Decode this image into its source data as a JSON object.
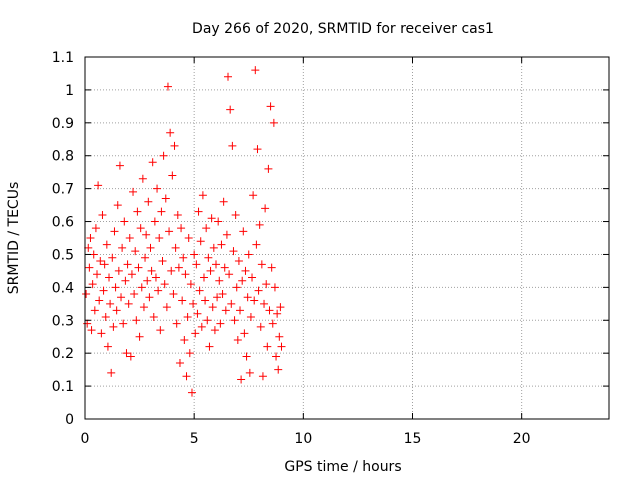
{
  "chart_data": {
    "type": "scatter",
    "title": "Day 266 of 2020, SRMTID for receiver cas1",
    "xlabel": "GPS time / hours",
    "ylabel": "SRMTID / TECUs",
    "xlim": [
      0,
      24
    ],
    "ylim": [
      0,
      1.1
    ],
    "xticks": [
      0,
      5,
      10,
      15,
      20
    ],
    "yticks": [
      0,
      0.1,
      0.2,
      0.3,
      0.4,
      0.5,
      0.6,
      0.7,
      0.8,
      0.9,
      1,
      1.1
    ],
    "grid": true,
    "legend": "none",
    "series_color": "#ff0000",
    "series": [
      {
        "name": "SRMTID",
        "marker": "plus",
        "points": [
          [
            0.05,
            0.38
          ],
          [
            0.1,
            0.29
          ],
          [
            0.15,
            0.52
          ],
          [
            0.2,
            0.46
          ],
          [
            0.25,
            0.55
          ],
          [
            0.3,
            0.27
          ],
          [
            0.35,
            0.41
          ],
          [
            0.4,
            0.5
          ],
          [
            0.45,
            0.33
          ],
          [
            0.5,
            0.58
          ],
          [
            0.55,
            0.44
          ],
          [
            0.6,
            0.71
          ],
          [
            0.65,
            0.36
          ],
          [
            0.7,
            0.48
          ],
          [
            0.75,
            0.26
          ],
          [
            0.8,
            0.62
          ],
          [
            0.85,
            0.39
          ],
          [
            0.9,
            0.47
          ],
          [
            0.95,
            0.31
          ],
          [
            1.0,
            0.53
          ],
          [
            1.05,
            0.22
          ],
          [
            1.1,
            0.43
          ],
          [
            1.15,
            0.35
          ],
          [
            1.2,
            0.14
          ],
          [
            1.25,
            0.49
          ],
          [
            1.3,
            0.28
          ],
          [
            1.35,
            0.57
          ],
          [
            1.4,
            0.4
          ],
          [
            1.45,
            0.33
          ],
          [
            1.5,
            0.65
          ],
          [
            1.55,
            0.45
          ],
          [
            1.6,
            0.77
          ],
          [
            1.65,
            0.37
          ],
          [
            1.7,
            0.52
          ],
          [
            1.75,
            0.29
          ],
          [
            1.8,
            0.6
          ],
          [
            1.85,
            0.42
          ],
          [
            1.9,
            0.2
          ],
          [
            1.95,
            0.47
          ],
          [
            2.0,
            0.35
          ],
          [
            2.05,
            0.55
          ],
          [
            2.1,
            0.19
          ],
          [
            2.15,
            0.44
          ],
          [
            2.2,
            0.69
          ],
          [
            2.25,
            0.38
          ],
          [
            2.3,
            0.51
          ],
          [
            2.35,
            0.3
          ],
          [
            2.4,
            0.63
          ],
          [
            2.45,
            0.46
          ],
          [
            2.5,
            0.25
          ],
          [
            2.55,
            0.58
          ],
          [
            2.6,
            0.4
          ],
          [
            2.65,
            0.73
          ],
          [
            2.7,
            0.34
          ],
          [
            2.75,
            0.49
          ],
          [
            2.8,
            0.56
          ],
          [
            2.85,
            0.42
          ],
          [
            2.9,
            0.66
          ],
          [
            2.95,
            0.37
          ],
          [
            3.0,
            0.52
          ],
          [
            3.05,
            0.45
          ],
          [
            3.1,
            0.78
          ],
          [
            3.15,
            0.31
          ],
          [
            3.2,
            0.6
          ],
          [
            3.25,
            0.43
          ],
          [
            3.3,
            0.7
          ],
          [
            3.35,
            0.39
          ],
          [
            3.4,
            0.55
          ],
          [
            3.45,
            0.27
          ],
          [
            3.5,
            0.63
          ],
          [
            3.55,
            0.48
          ],
          [
            3.6,
            0.8
          ],
          [
            3.65,
            0.41
          ],
          [
            3.7,
            0.67
          ],
          [
            3.75,
            0.34
          ],
          [
            3.8,
            1.01
          ],
          [
            3.85,
            0.57
          ],
          [
            3.9,
            0.87
          ],
          [
            3.95,
            0.45
          ],
          [
            4.0,
            0.74
          ],
          [
            4.05,
            0.38
          ],
          [
            4.1,
            0.83
          ],
          [
            4.15,
            0.52
          ],
          [
            4.2,
            0.29
          ],
          [
            4.25,
            0.62
          ],
          [
            4.3,
            0.46
          ],
          [
            4.35,
            0.17
          ],
          [
            4.4,
            0.58
          ],
          [
            4.45,
            0.36
          ],
          [
            4.5,
            0.49
          ],
          [
            4.55,
            0.24
          ],
          [
            4.6,
            0.44
          ],
          [
            4.65,
            0.13
          ],
          [
            4.7,
            0.31
          ],
          [
            4.75,
            0.55
          ],
          [
            4.8,
            0.2
          ],
          [
            4.85,
            0.41
          ],
          [
            4.9,
            0.08
          ],
          [
            4.95,
            0.35
          ],
          [
            5.0,
            0.5
          ],
          [
            5.05,
            0.26
          ],
          [
            5.1,
            0.47
          ],
          [
            5.15,
            0.32
          ],
          [
            5.2,
            0.63
          ],
          [
            5.25,
            0.39
          ],
          [
            5.3,
            0.54
          ],
          [
            5.35,
            0.28
          ],
          [
            5.4,
            0.68
          ],
          [
            5.45,
            0.43
          ],
          [
            5.5,
            0.36
          ],
          [
            5.55,
            0.58
          ],
          [
            5.6,
            0.3
          ],
          [
            5.65,
            0.49
          ],
          [
            5.7,
            0.22
          ],
          [
            5.75,
            0.45
          ],
          [
            5.8,
            0.61
          ],
          [
            5.85,
            0.34
          ],
          [
            5.9,
            0.52
          ],
          [
            5.95,
            0.27
          ],
          [
            6.0,
            0.47
          ],
          [
            6.05,
            0.37
          ],
          [
            6.1,
            0.6
          ],
          [
            6.15,
            0.42
          ],
          [
            6.2,
            0.29
          ],
          [
            6.25,
            0.53
          ],
          [
            6.3,
            0.38
          ],
          [
            6.35,
            0.66
          ],
          [
            6.4,
            0.46
          ],
          [
            6.45,
            0.33
          ],
          [
            6.5,
            0.56
          ],
          [
            6.55,
            1.04
          ],
          [
            6.6,
            0.44
          ],
          [
            6.65,
            0.94
          ],
          [
            6.7,
            0.35
          ],
          [
            6.75,
            0.83
          ],
          [
            6.8,
            0.51
          ],
          [
            6.85,
            0.3
          ],
          [
            6.9,
            0.62
          ],
          [
            6.95,
            0.4
          ],
          [
            7.0,
            0.24
          ],
          [
            7.05,
            0.48
          ],
          [
            7.1,
            0.33
          ],
          [
            7.15,
            0.12
          ],
          [
            7.2,
            0.42
          ],
          [
            7.25,
            0.57
          ],
          [
            7.3,
            0.26
          ],
          [
            7.35,
            0.45
          ],
          [
            7.4,
            0.19
          ],
          [
            7.45,
            0.37
          ],
          [
            7.5,
            0.5
          ],
          [
            7.55,
            0.14
          ],
          [
            7.6,
            0.31
          ],
          [
            7.65,
            0.43
          ],
          [
            7.7,
            0.68
          ],
          [
            7.75,
            0.36
          ],
          [
            7.8,
            1.06
          ],
          [
            7.85,
            0.53
          ],
          [
            7.9,
            0.82
          ],
          [
            7.95,
            0.39
          ],
          [
            8.0,
            0.59
          ],
          [
            8.05,
            0.28
          ],
          [
            8.1,
            0.47
          ],
          [
            8.15,
            0.13
          ],
          [
            8.2,
            0.35
          ],
          [
            8.25,
            0.64
          ],
          [
            8.3,
            0.41
          ],
          [
            8.35,
            0.22
          ],
          [
            8.4,
            0.76
          ],
          [
            8.45,
            0.33
          ],
          [
            8.5,
            0.95
          ],
          [
            8.55,
            0.46
          ],
          [
            8.6,
            0.29
          ],
          [
            8.65,
            0.9
          ],
          [
            8.7,
            0.4
          ],
          [
            8.75,
            0.19
          ],
          [
            8.8,
            0.32
          ],
          [
            8.85,
            0.15
          ],
          [
            8.9,
            0.25
          ],
          [
            8.95,
            0.34
          ],
          [
            9.0,
            0.22
          ]
        ]
      }
    ]
  }
}
